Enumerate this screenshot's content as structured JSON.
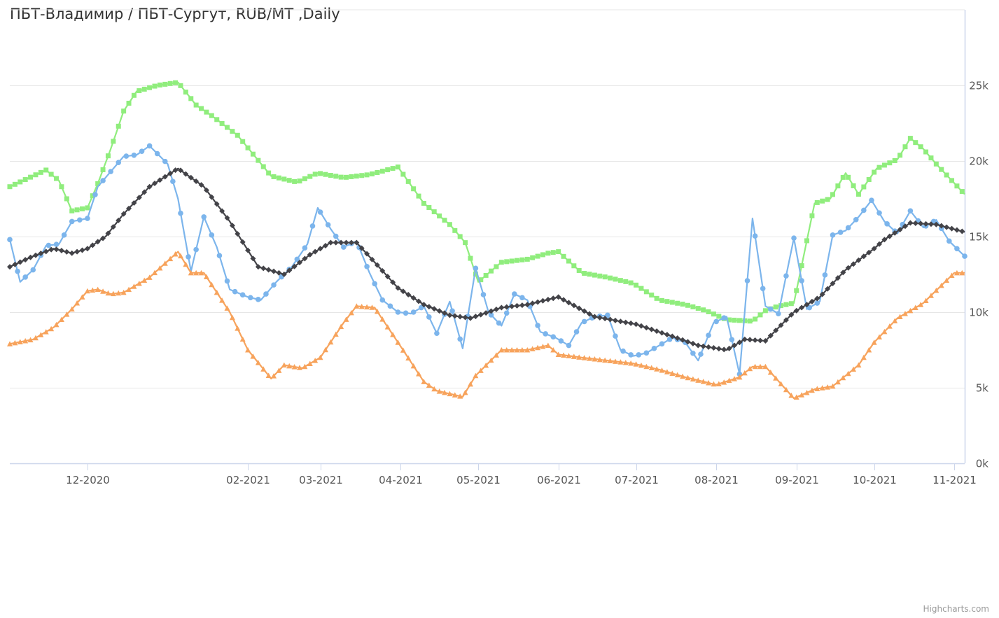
{
  "chart_data": {
    "type": "line",
    "title": "ПБТ-Владимир / ПБТ-Сургут, RUB/MT ,Daily",
    "credits": "Highcharts.com",
    "y_axis": {
      "position": "right",
      "min": 0,
      "max": 30000,
      "ticks": [
        0,
        5000,
        10000,
        15000,
        20000,
        25000
      ],
      "tick_labels": [
        "0k",
        "5k",
        "10k",
        "15k",
        "20k",
        "25k"
      ],
      "grid": true
    },
    "x_axis": {
      "start": "2020-11-01",
      "end": "2021-11-05",
      "ticks": [
        "2020-12-01",
        "2021-02-01",
        "2021-03-01",
        "2021-04-01",
        "2021-05-01",
        "2021-06-01",
        "2021-07-01",
        "2021-08-01",
        "2021-09-01",
        "2021-10-01",
        "2021-11-01"
      ],
      "tick_labels": [
        "12-2020",
        "02-2021",
        "03-2021",
        "04-2021",
        "05-2021",
        "06-2021",
        "07-2021",
        "08-2021",
        "09-2021",
        "10-2021",
        "11-2021"
      ]
    },
    "legend": "none",
    "series": [
      {
        "color": "#90ed7d",
        "marker": "square",
        "x": [
          "2020-11-01",
          "2020-11-15",
          "2020-11-20",
          "2020-11-25",
          "2020-12-01",
          "2020-12-05",
          "2020-12-10",
          "2020-12-15",
          "2020-12-20",
          "2020-12-28",
          "2021-01-05",
          "2021-01-12",
          "2021-01-18",
          "2021-01-28",
          "2021-02-10",
          "2021-02-20",
          "2021-02-28",
          "2021-03-10",
          "2021-03-20",
          "2021-03-31",
          "2021-04-10",
          "2021-04-20",
          "2021-04-26",
          "2021-05-01",
          "2021-05-10",
          "2021-05-20",
          "2021-05-28",
          "2021-06-01",
          "2021-06-10",
          "2021-06-20",
          "2021-06-30",
          "2021-07-10",
          "2021-07-20",
          "2021-07-28",
          "2021-08-05",
          "2021-08-15",
          "2021-08-20",
          "2021-08-25",
          "2021-08-31",
          "2021-09-08",
          "2021-09-14",
          "2021-09-20",
          "2021-09-25",
          "2021-10-02",
          "2021-10-10",
          "2021-10-15",
          "2021-10-20",
          "2021-10-25",
          "2021-11-05"
        ],
        "values": [
          18300,
          19400,
          18700,
          16700,
          16900,
          18500,
          20800,
          23300,
          24600,
          25000,
          25200,
          23700,
          23000,
          21700,
          19000,
          18600,
          19200,
          18900,
          19100,
          19600,
          17200,
          15800,
          14600,
          12000,
          13300,
          13500,
          13900,
          14000,
          12600,
          12300,
          11900,
          10800,
          10500,
          10100,
          9500,
          9400,
          10100,
          10400,
          10600,
          17200,
          17500,
          19200,
          17800,
          19500,
          20100,
          21500,
          20800,
          19800,
          17800
        ]
      },
      {
        "color": "#7cb5ec",
        "marker": "circle",
        "x": [
          "2020-11-01",
          "2020-11-05",
          "2020-11-10",
          "2020-11-15",
          "2020-11-20",
          "2020-11-25",
          "2020-12-01",
          "2020-12-05",
          "2020-12-10",
          "2020-12-15",
          "2020-12-20",
          "2020-12-25",
          "2021-01-01",
          "2021-01-05",
          "2021-01-10",
          "2021-01-15",
          "2021-01-20",
          "2021-01-25",
          "2021-02-01",
          "2021-02-06",
          "2021-02-12",
          "2021-02-18",
          "2021-02-24",
          "2021-02-28",
          "2021-03-05",
          "2021-03-10",
          "2021-03-15",
          "2021-03-20",
          "2021-03-25",
          "2021-03-31",
          "2021-04-05",
          "2021-04-10",
          "2021-04-15",
          "2021-04-20",
          "2021-04-25",
          "2021-04-30",
          "2021-05-05",
          "2021-05-10",
          "2021-05-15",
          "2021-05-20",
          "2021-05-25",
          "2021-05-31",
          "2021-06-05",
          "2021-06-10",
          "2021-06-15",
          "2021-06-20",
          "2021-06-25",
          "2021-06-30",
          "2021-07-05",
          "2021-07-10",
          "2021-07-15",
          "2021-07-20",
          "2021-07-25",
          "2021-07-31",
          "2021-08-05",
          "2021-08-10",
          "2021-08-15",
          "2021-08-20",
          "2021-08-25",
          "2021-08-31",
          "2021-09-05",
          "2021-09-10",
          "2021-09-15",
          "2021-09-20",
          "2021-09-25",
          "2021-09-30",
          "2021-10-05",
          "2021-10-10",
          "2021-10-15",
          "2021-10-20",
          "2021-10-25",
          "2021-10-30",
          "2021-11-05"
        ],
        "values": [
          14800,
          12000,
          12800,
          14400,
          14500,
          16000,
          16200,
          18300,
          19300,
          20300,
          20400,
          21000,
          19800,
          17500,
          12700,
          16300,
          14300,
          11500,
          11000,
          10800,
          12000,
          13000,
          14500,
          16900,
          15500,
          14300,
          14700,
          12600,
          10800,
          10000,
          9900,
          10400,
          8600,
          10700,
          7600,
          12900,
          10000,
          9100,
          11200,
          10800,
          8700,
          8300,
          7800,
          9300,
          9700,
          9800,
          7500,
          7100,
          7300,
          7800,
          8300,
          8000,
          6800,
          9300,
          9700,
          5900,
          16200,
          10400,
          9900,
          14900,
          10200,
          10700,
          15100,
          15400,
          16300,
          17400,
          16000,
          15200,
          16700,
          15600,
          16100,
          14700,
          13700
        ]
      },
      {
        "color": "#434348",
        "marker": "diamond",
        "x": [
          "2020-11-01",
          "2020-11-10",
          "2020-11-18",
          "2020-11-25",
          "2020-12-01",
          "2020-12-08",
          "2020-12-15",
          "2020-12-25",
          "2021-01-05",
          "2021-01-15",
          "2021-01-25",
          "2021-02-05",
          "2021-02-15",
          "2021-02-25",
          "2021-03-05",
          "2021-03-15",
          "2021-03-22",
          "2021-03-31",
          "2021-04-10",
          "2021-04-20",
          "2021-04-28",
          "2021-05-10",
          "2021-05-20",
          "2021-06-01",
          "2021-06-15",
          "2021-07-01",
          "2021-07-15",
          "2021-07-25",
          "2021-08-05",
          "2021-08-12",
          "2021-08-20",
          "2021-08-31",
          "2021-09-10",
          "2021-09-20",
          "2021-10-01",
          "2021-10-05",
          "2021-10-15",
          "2021-10-25",
          "2021-11-05"
        ],
        "values": [
          13000,
          13700,
          14200,
          13900,
          14200,
          15000,
          16500,
          18300,
          19500,
          18300,
          16000,
          13000,
          12500,
          13800,
          14600,
          14600,
          13300,
          11600,
          10500,
          9800,
          9600,
          10300,
          10500,
          11000,
          9700,
          9200,
          8400,
          7800,
          7500,
          8200,
          8100,
          10000,
          11000,
          12800,
          14200,
          14800,
          15900,
          15800,
          15300
        ]
      },
      {
        "color": "#f7a35c",
        "marker": "triangle",
        "x": [
          "2020-11-01",
          "2020-11-10",
          "2020-11-18",
          "2020-11-25",
          "2020-12-01",
          "2020-12-05",
          "2020-12-10",
          "2020-12-15",
          "2020-12-25",
          "2021-01-05",
          "2021-01-10",
          "2021-01-15",
          "2021-01-25",
          "2021-02-01",
          "2021-02-10",
          "2021-02-15",
          "2021-02-22",
          "2021-03-01",
          "2021-03-10",
          "2021-03-15",
          "2021-03-22",
          "2021-03-31",
          "2021-04-10",
          "2021-04-15",
          "2021-04-25",
          "2021-04-30",
          "2021-05-10",
          "2021-05-20",
          "2021-05-28",
          "2021-06-01",
          "2021-06-10",
          "2021-06-20",
          "2021-06-30",
          "2021-07-10",
          "2021-07-20",
          "2021-08-01",
          "2021-08-10",
          "2021-08-15",
          "2021-08-20",
          "2021-08-31",
          "2021-09-08",
          "2021-09-15",
          "2021-09-20",
          "2021-09-25",
          "2021-10-01",
          "2021-10-10",
          "2021-10-20",
          "2021-11-01",
          "2021-11-05"
        ],
        "values": [
          7900,
          8200,
          9000,
          10200,
          11400,
          11500,
          11200,
          11300,
          12300,
          14000,
          12600,
          12600,
          10000,
          7500,
          5600,
          6500,
          6300,
          7000,
          9300,
          10400,
          10300,
          8000,
          5400,
          4800,
          4400,
          5800,
          7500,
          7500,
          7800,
          7200,
          7000,
          6800,
          6600,
          6200,
          5700,
          5200,
          5700,
          6400,
          6400,
          4300,
          4900,
          5100,
          5800,
          6500,
          8000,
          9600,
          10600,
          12600,
          12600
        ]
      }
    ]
  }
}
